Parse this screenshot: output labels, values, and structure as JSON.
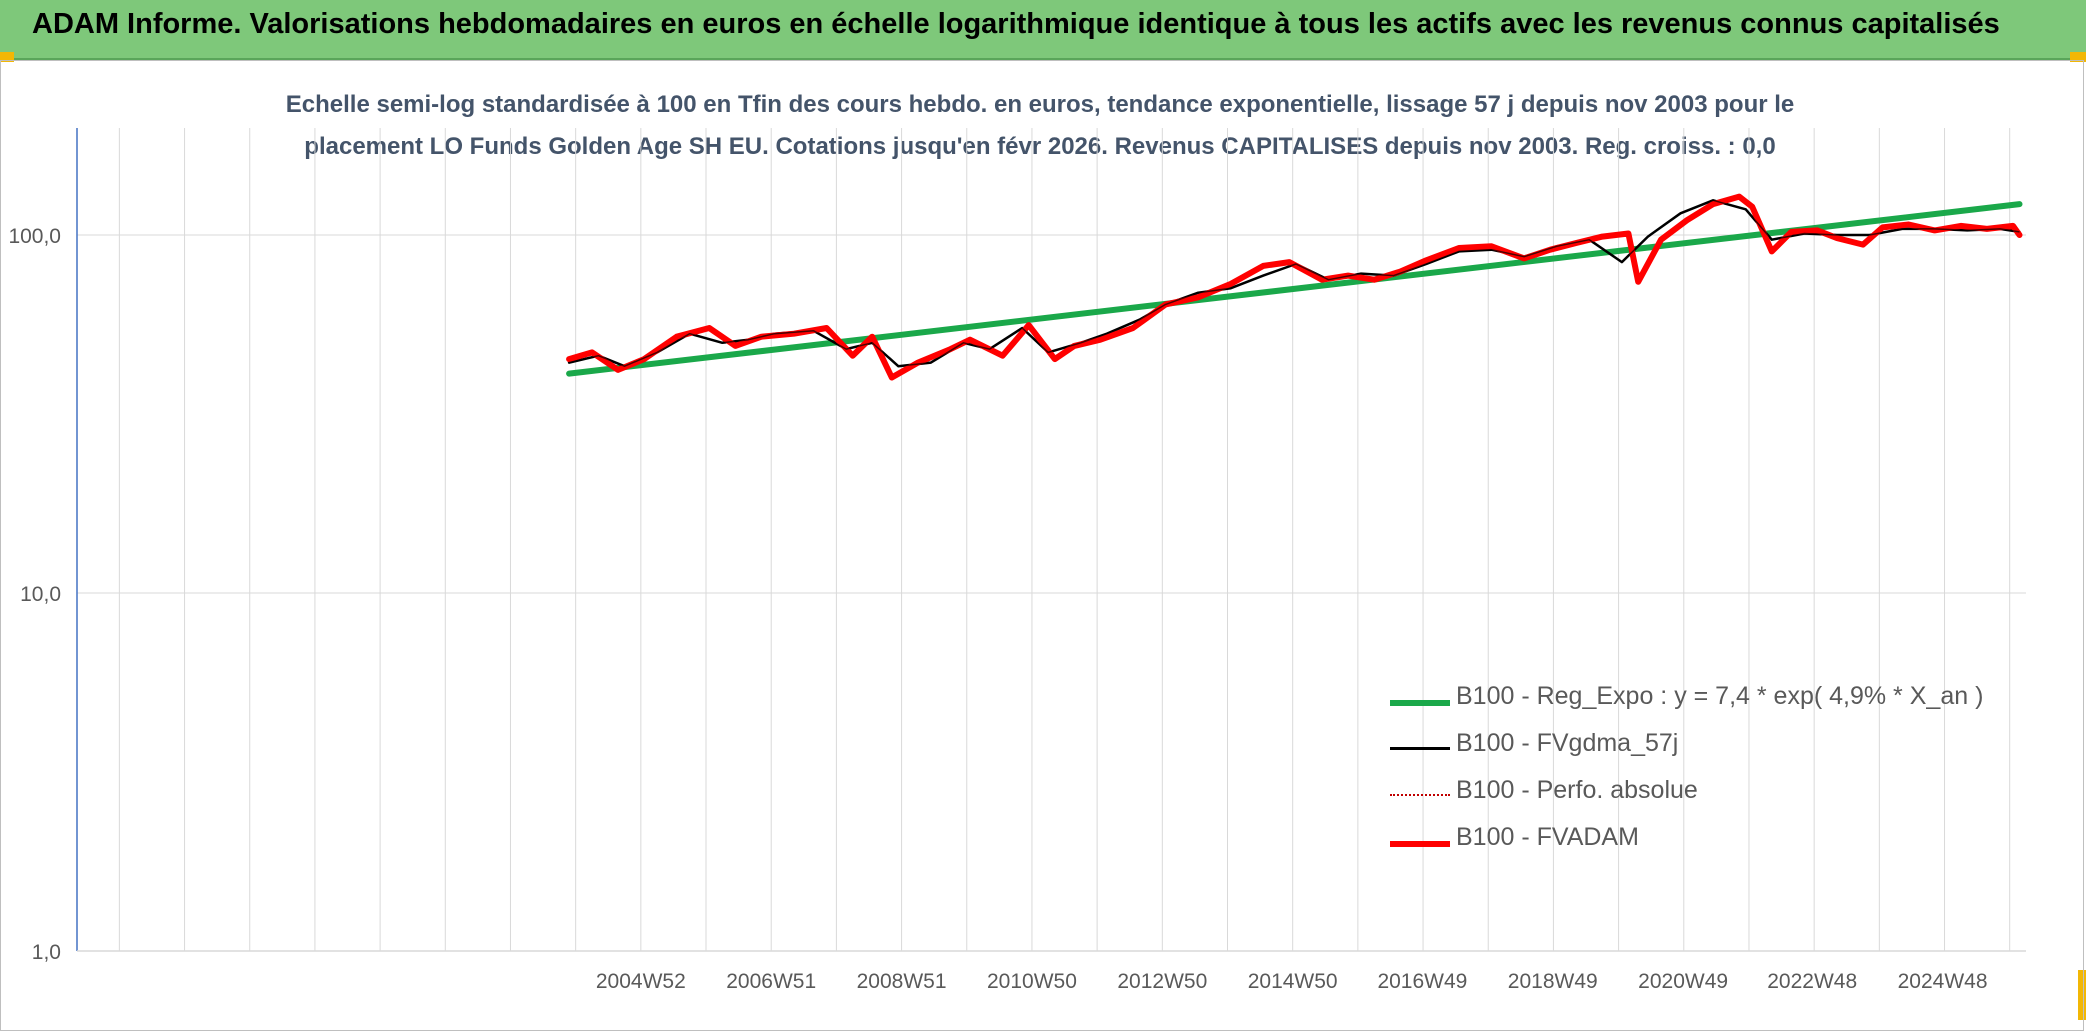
{
  "header": {
    "title": "ADAM Informe. Valorisations hebdomadaires en euros en échelle logarithmique identique à tous les actifs avec les revenus connus capitalisés"
  },
  "colors": {
    "banner": "#7ec87a",
    "regression": "#1aa84a",
    "smooth": "#000000",
    "perfo": "#c00000",
    "fvadam": "#ff0000",
    "title_text": "#44546a",
    "axis_text": "#595959",
    "gridline": "#d9d9d9",
    "accent_corner": "#f2b705"
  },
  "chart_data": {
    "type": "line",
    "title_lines": [
      "Echelle semi-log standardisée à 100 en Tfin des cours hebdo. en euros, tendance exponentielle, lissage 57 j depuis nov 2003 pour le",
      "placement LO Funds Golden Age SH EU. Cotations jusqu'en févr 2026. Revenus CAPITALISES depuis nov 2003. Reg. croiss. : 0,0"
    ],
    "y_scale": "log",
    "ylim": [
      1,
      200
    ],
    "y_ticks": [
      1,
      10,
      100
    ],
    "y_tick_labels": [
      "1,0",
      "10,0",
      "100,0"
    ],
    "xlim": [
      1996.3,
      2026.2
    ],
    "x_ticks": [
      2004.95,
      2006.95,
      2008.95,
      2010.95,
      2012.95,
      2014.95,
      2016.94,
      2018.94,
      2020.94,
      2022.92,
      2024.92
    ],
    "x_tick_labels": [
      "2004W52",
      "2006W51",
      "2008W51",
      "2010W50",
      "2012W50",
      "2014W50",
      "2016W49",
      "2018W49",
      "2020W49",
      "2022W48",
      "2024W48"
    ],
    "grid": true,
    "legend_position": "bottom-right",
    "series": [
      {
        "name": "B100 - Reg_Expo : y = 7,4 * exp( 4,9% *  X_an )",
        "color": "#1aa84a",
        "style": "solid-thick",
        "x": [
          2003.85,
          2026.1
        ],
        "y": [
          41,
          122
        ]
      },
      {
        "name": "B100 - FVgdma_57j",
        "color": "#000000",
        "style": "solid-thin",
        "x": [
          2003.85,
          2004.3,
          2004.7,
          2005.2,
          2005.7,
          2006.2,
          2006.6,
          2007.0,
          2007.6,
          2008.1,
          2008.5,
          2008.9,
          2009.4,
          2009.9,
          2010.3,
          2010.8,
          2011.2,
          2011.7,
          2012.1,
          2012.6,
          2013.0,
          2013.5,
          2014.0,
          2014.5,
          2015.0,
          2015.5,
          2016.0,
          2016.5,
          2017.0,
          2017.5,
          2018.0,
          2018.5,
          2019.0,
          2019.5,
          2020.0,
          2020.4,
          2020.9,
          2021.4,
          2021.9,
          2022.3,
          2022.8,
          2023.3,
          2023.8,
          2024.3,
          2024.8,
          2025.3,
          2025.8,
          2026.1
        ],
        "y": [
          44,
          46,
          43,
          47,
          53,
          50,
          51,
          53,
          54,
          48,
          50,
          43,
          44,
          50,
          48,
          55,
          47,
          50,
          53,
          58,
          64,
          69,
          71,
          77,
          83,
          75,
          78,
          77,
          83,
          90,
          91,
          87,
          93,
          97,
          84,
          99,
          115,
          125,
          118,
          97,
          101,
          100,
          100,
          104,
          104,
          103,
          104,
          102
        ]
      },
      {
        "name": "B100 - Perfo. absolue",
        "color": "#c00000",
        "style": "dotted",
        "x": [
          2003.85,
          2004.2,
          2004.6,
          2005.0,
          2005.5,
          2006.0,
          2006.4,
          2006.8,
          2007.3,
          2007.8,
          2008.2,
          2008.5,
          2008.8,
          2009.2,
          2009.7,
          2010.0,
          2010.5,
          2010.9,
          2011.3,
          2011.6,
          2012.0,
          2012.5,
          2013.0,
          2013.5,
          2014.0,
          2014.5,
          2014.9,
          2015.4,
          2015.8,
          2016.2,
          2016.6,
          2017.0,
          2017.5,
          2018.0,
          2018.5,
          2018.9,
          2019.3,
          2019.7,
          2020.1,
          2020.25,
          2020.6,
          2021.0,
          2021.4,
          2021.8,
          2022.0,
          2022.3,
          2022.6,
          2023.0,
          2023.3,
          2023.7,
          2024.0,
          2024.4,
          2024.8,
          2025.2,
          2025.6,
          2026.0,
          2026.1
        ],
        "y": [
          45,
          47,
          42,
          45,
          52,
          55,
          49,
          52,
          53,
          55,
          46,
          52,
          40,
          44,
          48,
          51,
          46,
          56,
          45,
          49,
          51,
          55,
          64,
          67,
          73,
          82,
          84,
          75,
          77,
          75,
          79,
          85,
          92,
          93,
          86,
          91,
          95,
          99,
          101,
          74,
          97,
          110,
          122,
          128,
          120,
          90,
          102,
          103,
          98,
          94,
          105,
          107,
          103,
          106,
          104,
          106,
          100
        ]
      },
      {
        "name": "B100 - FVADAM",
        "color": "#ff0000",
        "style": "solid-thick",
        "x": [
          2003.85,
          2004.2,
          2004.6,
          2005.0,
          2005.5,
          2006.0,
          2006.4,
          2006.8,
          2007.3,
          2007.8,
          2008.2,
          2008.5,
          2008.8,
          2009.2,
          2009.7,
          2010.0,
          2010.5,
          2010.9,
          2011.3,
          2011.6,
          2012.0,
          2012.5,
          2013.0,
          2013.5,
          2014.0,
          2014.5,
          2014.9,
          2015.4,
          2015.8,
          2016.2,
          2016.6,
          2017.0,
          2017.5,
          2018.0,
          2018.5,
          2018.9,
          2019.3,
          2019.7,
          2020.1,
          2020.25,
          2020.6,
          2021.0,
          2021.4,
          2021.8,
          2022.0,
          2022.3,
          2022.6,
          2023.0,
          2023.3,
          2023.7,
          2024.0,
          2024.4,
          2024.8,
          2025.2,
          2025.6,
          2026.0,
          2026.1
        ],
        "y": [
          45,
          47,
          42,
          45,
          52,
          55,
          49,
          52,
          53,
          55,
          46,
          52,
          40,
          44,
          48,
          51,
          46,
          56,
          45,
          49,
          51,
          55,
          64,
          67,
          73,
          82,
          84,
          75,
          77,
          75,
          79,
          85,
          92,
          93,
          86,
          91,
          95,
          99,
          101,
          74,
          97,
          110,
          122,
          128,
          120,
          90,
          102,
          103,
          98,
          94,
          105,
          107,
          103,
          106,
          104,
          106,
          100
        ]
      }
    ]
  }
}
